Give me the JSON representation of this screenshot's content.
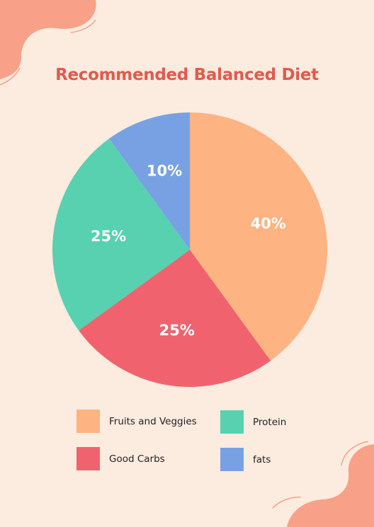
{
  "title": "Recommended Balanced Diet",
  "colors": {
    "background": "#fcebdf",
    "blob": "#f9a088",
    "title": "#e05a4e"
  },
  "chart_data": {
    "type": "pie",
    "title": "Recommended Balanced Diet",
    "slices": [
      {
        "label": "Fruits and Veggies",
        "value": 40,
        "display": "40%",
        "color": "#fdb382"
      },
      {
        "label": "Good Carbs",
        "value": 25,
        "display": "25%",
        "color": "#f0636e"
      },
      {
        "label": "Protein",
        "value": 25,
        "display": "25%",
        "color": "#57d1b0"
      },
      {
        "label": "fats",
        "value": 10,
        "display": "10%",
        "color": "#78a1e3"
      }
    ],
    "legend_placement": "bottom"
  },
  "legend": [
    {
      "label": "Fruits and Veggies",
      "color": "#fdb382"
    },
    {
      "label": "Protein",
      "color": "#57d1b0"
    },
    {
      "label": "Good Carbs",
      "color": "#f0636e"
    },
    {
      "label": "fats",
      "color": "#78a1e3"
    }
  ]
}
